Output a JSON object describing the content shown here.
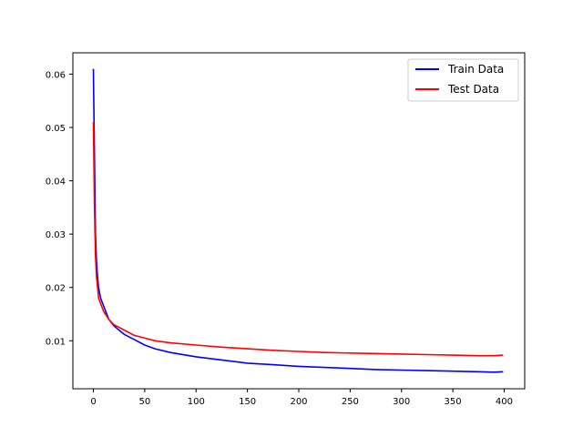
{
  "chart_data": {
    "type": "line",
    "title": "",
    "xlabel": "",
    "ylabel": "",
    "xlim": [
      -20,
      420
    ],
    "ylim": [
      0.001,
      0.064
    ],
    "xticks": [
      0,
      50,
      100,
      150,
      200,
      250,
      300,
      350,
      400
    ],
    "yticks": [
      0.01,
      0.02,
      0.03,
      0.04,
      0.05,
      0.06
    ],
    "ytick_labels": [
      "0.01",
      "0.02",
      "0.03",
      "0.04",
      "0.05",
      "0.06"
    ],
    "grid": false,
    "legend": {
      "position": "upper right"
    },
    "series": [
      {
        "name": "Train Data",
        "color": "#0000ff",
        "x": [
          0,
          1,
          2,
          3,
          4,
          5,
          7,
          10,
          15,
          20,
          25,
          30,
          40,
          50,
          60,
          75,
          100,
          125,
          150,
          175,
          200,
          225,
          250,
          275,
          300,
          325,
          350,
          375,
          390,
          399
        ],
        "y": [
          0.061,
          0.045,
          0.03,
          0.025,
          0.022,
          0.02,
          0.018,
          0.0165,
          0.014,
          0.0128,
          0.012,
          0.0112,
          0.0102,
          0.0092,
          0.0085,
          0.0078,
          0.007,
          0.0064,
          0.0058,
          0.0055,
          0.0052,
          0.005,
          0.0048,
          0.0046,
          0.0045,
          0.0044,
          0.0043,
          0.0042,
          0.0041,
          0.0042
        ]
      },
      {
        "name": "Test Data",
        "color": "#ff0000",
        "x": [
          0,
          1,
          2,
          3,
          4,
          5,
          7,
          10,
          15,
          20,
          25,
          30,
          35,
          40,
          50,
          60,
          75,
          100,
          125,
          150,
          175,
          200,
          225,
          250,
          275,
          300,
          325,
          350,
          375,
          390,
          399
        ],
        "y": [
          0.051,
          0.035,
          0.026,
          0.022,
          0.02,
          0.018,
          0.017,
          0.0155,
          0.014,
          0.013,
          0.0125,
          0.012,
          0.0115,
          0.011,
          0.0105,
          0.01,
          0.0096,
          0.0092,
          0.0088,
          0.0085,
          0.0082,
          0.008,
          0.0078,
          0.0077,
          0.0076,
          0.0075,
          0.0074,
          0.0073,
          0.0072,
          0.0072,
          0.0073
        ]
      }
    ]
  }
}
